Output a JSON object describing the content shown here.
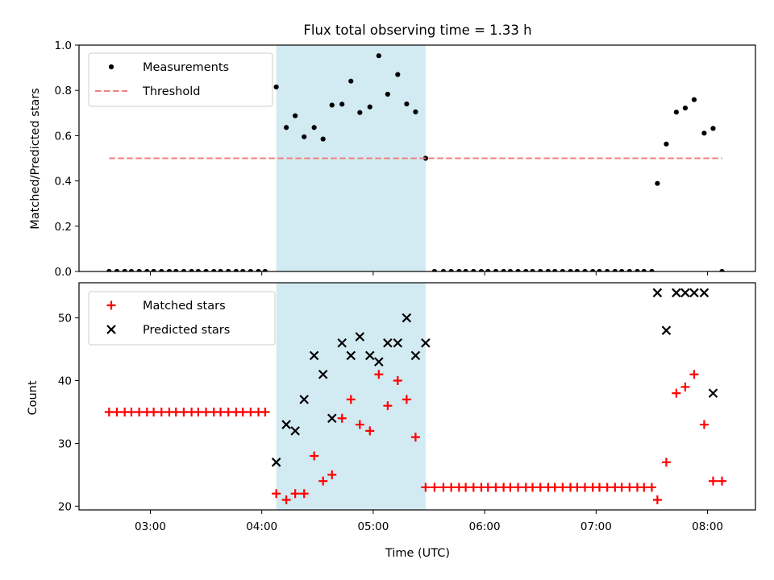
{
  "chart_data": [
    {
      "type": "scatter",
      "title": "Flux total observing time = 1.33 h",
      "xlabel": "",
      "ylabel": "Matched/Predicted stars",
      "ylim": [
        0,
        1
      ],
      "yticks": [
        "0.0",
        "0.2",
        "0.4",
        "0.6",
        "0.8",
        "1.0"
      ],
      "xticks": [
        "03:00",
        "04:00",
        "05:00",
        "06:00",
        "07:00",
        "08:00"
      ],
      "xlim_hours": [
        2.36,
        8.43
      ],
      "shaded_interval_hours": [
        4.13,
        5.47
      ],
      "shade_color": "#add8e6",
      "legend_position": "upper left",
      "series": [
        {
          "name": "Measurements",
          "marker": "dot",
          "color": "#000000",
          "x": [
            2.63,
            2.7,
            2.77,
            2.83,
            2.9,
            2.97,
            3.03,
            3.1,
            3.17,
            3.23,
            3.3,
            3.37,
            3.43,
            3.5,
            3.57,
            3.63,
            3.7,
            3.77,
            3.83,
            3.9,
            3.97,
            4.03,
            4.13,
            4.22,
            4.3,
            4.38,
            4.47,
            4.55,
            4.63,
            4.72,
            4.8,
            4.88,
            4.97,
            5.05,
            5.13,
            5.22,
            5.3,
            5.38,
            5.47,
            5.55,
            5.63,
            5.7,
            5.77,
            5.83,
            5.9,
            5.97,
            6.03,
            6.1,
            6.17,
            6.23,
            6.3,
            6.37,
            6.43,
            6.5,
            6.57,
            6.63,
            6.7,
            6.77,
            6.83,
            6.9,
            6.97,
            7.03,
            7.1,
            7.17,
            7.23,
            7.3,
            7.37,
            7.43,
            7.5,
            7.55,
            7.63,
            7.72,
            7.8,
            7.88,
            7.97,
            8.05,
            8.13
          ],
          "y": [
            0,
            0,
            0,
            0,
            0,
            0,
            0,
            0,
            0,
            0,
            0,
            0,
            0,
            0,
            0,
            0,
            0,
            0,
            0,
            0,
            0,
            0,
            0.815,
            0.636,
            0.688,
            0.595,
            0.636,
            0.585,
            0.735,
            0.739,
            0.841,
            0.702,
            0.727,
            0.953,
            0.783,
            0.87,
            0.74,
            0.705,
            0.5,
            0,
            0,
            0,
            0,
            0,
            0,
            0,
            0,
            0,
            0,
            0,
            0,
            0,
            0,
            0,
            0,
            0,
            0,
            0,
            0,
            0,
            0,
            0,
            0,
            0,
            0,
            0,
            0,
            0,
            0,
            0.389,
            0.563,
            0.704,
            0.722,
            0.759,
            0.611,
            0.632,
            0
          ]
        },
        {
          "name": "Threshold",
          "marker": "dashed-line",
          "color": "#f08080",
          "x": [
            2.63,
            8.13
          ],
          "y": [
            0.5,
            0.5
          ]
        }
      ]
    },
    {
      "type": "scatter",
      "title": "",
      "xlabel": "Time (UTC)",
      "ylabel": "Count",
      "ylim": [
        19.4,
        55.6
      ],
      "yticks": [
        "20",
        "30",
        "40",
        "50"
      ],
      "xticks": [
        "03:00",
        "04:00",
        "05:00",
        "06:00",
        "07:00",
        "08:00"
      ],
      "xlim_hours": [
        2.36,
        8.43
      ],
      "shaded_interval_hours": [
        4.13,
        5.47
      ],
      "shade_color": "#add8e6",
      "legend_position": "upper left",
      "series": [
        {
          "name": "Matched stars",
          "marker": "plus",
          "color": "#ff0000",
          "x": [
            2.63,
            2.7,
            2.77,
            2.83,
            2.9,
            2.97,
            3.03,
            3.1,
            3.17,
            3.23,
            3.3,
            3.37,
            3.43,
            3.5,
            3.57,
            3.63,
            3.7,
            3.77,
            3.83,
            3.9,
            3.97,
            4.03,
            4.13,
            4.22,
            4.3,
            4.38,
            4.47,
            4.55,
            4.63,
            4.72,
            4.8,
            4.88,
            4.97,
            5.05,
            5.13,
            5.22,
            5.3,
            5.38,
            5.47,
            5.55,
            5.63,
            5.7,
            5.77,
            5.83,
            5.9,
            5.97,
            6.03,
            6.1,
            6.17,
            6.23,
            6.3,
            6.37,
            6.43,
            6.5,
            6.57,
            6.63,
            6.7,
            6.77,
            6.83,
            6.9,
            6.97,
            7.03,
            7.1,
            7.17,
            7.23,
            7.3,
            7.37,
            7.43,
            7.5,
            7.55,
            7.63,
            7.72,
            7.8,
            7.88,
            7.97,
            8.05,
            8.13
          ],
          "y": [
            35,
            35,
            35,
            35,
            35,
            35,
            35,
            35,
            35,
            35,
            35,
            35,
            35,
            35,
            35,
            35,
            35,
            35,
            35,
            35,
            35,
            35,
            22,
            21,
            22,
            22,
            28,
            24,
            25,
            34,
            37,
            33,
            32,
            41,
            36,
            40,
            37,
            31,
            23,
            23,
            23,
            23,
            23,
            23,
            23,
            23,
            23,
            23,
            23,
            23,
            23,
            23,
            23,
            23,
            23,
            23,
            23,
            23,
            23,
            23,
            23,
            23,
            23,
            23,
            23,
            23,
            23,
            23,
            23,
            21,
            27,
            38,
            39,
            41,
            33,
            24,
            24
          ]
        },
        {
          "name": "Predicted stars",
          "marker": "x",
          "color": "#000000",
          "x": [
            4.13,
            4.22,
            4.3,
            4.38,
            4.47,
            4.55,
            4.63,
            4.72,
            4.8,
            4.88,
            4.97,
            5.05,
            5.13,
            5.22,
            5.3,
            5.38,
            5.47,
            7.55,
            7.63,
            7.72,
            7.8,
            7.88,
            7.97,
            8.05
          ],
          "y": [
            27,
            33,
            32,
            37,
            44,
            41,
            34,
            46,
            44,
            47,
            44,
            43,
            46,
            46,
            50,
            44,
            46,
            54,
            48,
            54,
            54,
            54,
            54,
            38
          ]
        }
      ]
    }
  ]
}
